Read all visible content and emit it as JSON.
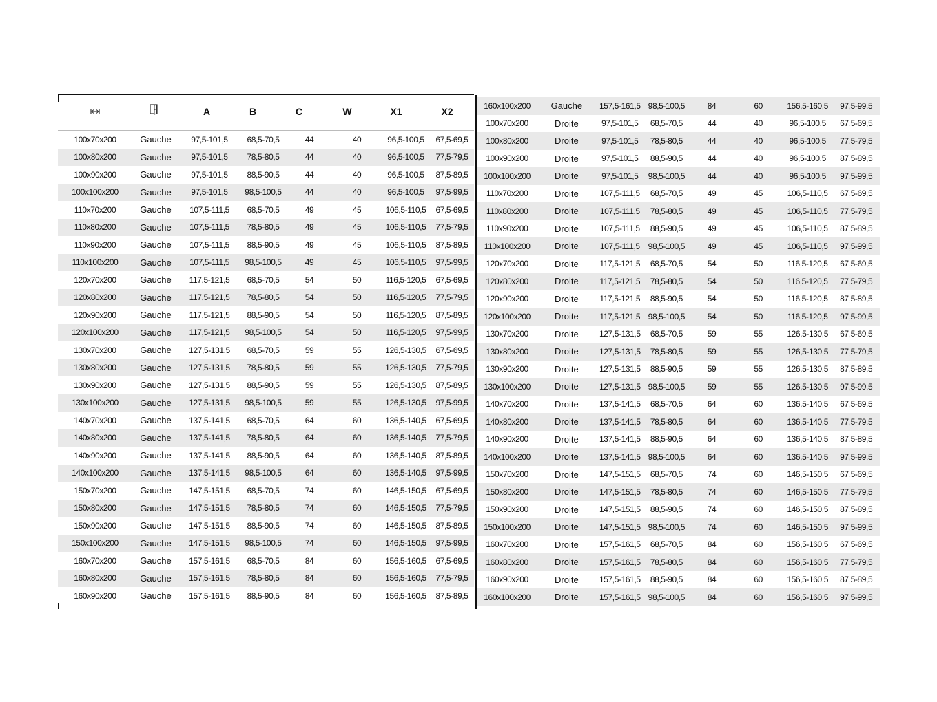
{
  "header": {
    "icons": [
      "width-arrows-icon",
      "door-icon"
    ],
    "labels": [
      "A",
      "B",
      "C",
      "W",
      "X1",
      "X2"
    ]
  },
  "left_rows": [
    [
      "100x70x200",
      "Gauche",
      "97,5-101,5",
      "68,5-70,5",
      "44",
      "40",
      "96,5-100,5",
      "67,5-69,5"
    ],
    [
      "100x80x200",
      "Gauche",
      "97,5-101,5",
      "78,5-80,5",
      "44",
      "40",
      "96,5-100,5",
      "77,5-79,5"
    ],
    [
      "100x90x200",
      "Gauche",
      "97,5-101,5",
      "88,5-90,5",
      "44",
      "40",
      "96,5-100,5",
      "87,5-89,5"
    ],
    [
      "100x100x200",
      "Gauche",
      "97,5-101,5",
      "98,5-100,5",
      "44",
      "40",
      "96,5-100,5",
      "97,5-99,5"
    ],
    [
      "110x70x200",
      "Gauche",
      "107,5-111,5",
      "68,5-70,5",
      "49",
      "45",
      "106,5-110,5",
      "67,5-69,5"
    ],
    [
      "110x80x200",
      "Gauche",
      "107,5-111,5",
      "78,5-80,5",
      "49",
      "45",
      "106,5-110,5",
      "77,5-79,5"
    ],
    [
      "110x90x200",
      "Gauche",
      "107,5-111,5",
      "88,5-90,5",
      "49",
      "45",
      "106,5-110,5",
      "87,5-89,5"
    ],
    [
      "110x100x200",
      "Gauche",
      "107,5-111,5",
      "98,5-100,5",
      "49",
      "45",
      "106,5-110,5",
      "97,5-99,5"
    ],
    [
      "120x70x200",
      "Gauche",
      "117,5-121,5",
      "68,5-70,5",
      "54",
      "50",
      "116,5-120,5",
      "67,5-69,5"
    ],
    [
      "120x80x200",
      "Gauche",
      "117,5-121,5",
      "78,5-80,5",
      "54",
      "50",
      "116,5-120,5",
      "77,5-79,5"
    ],
    [
      "120x90x200",
      "Gauche",
      "117,5-121,5",
      "88,5-90,5",
      "54",
      "50",
      "116,5-120,5",
      "87,5-89,5"
    ],
    [
      "120x100x200",
      "Gauche",
      "117,5-121,5",
      "98,5-100,5",
      "54",
      "50",
      "116,5-120,5",
      "97,5-99,5"
    ],
    [
      "130x70x200",
      "Gauche",
      "127,5-131,5",
      "68,5-70,5",
      "59",
      "55",
      "126,5-130,5",
      "67,5-69,5"
    ],
    [
      "130x80x200",
      "Gauche",
      "127,5-131,5",
      "78,5-80,5",
      "59",
      "55",
      "126,5-130,5",
      "77,5-79,5"
    ],
    [
      "130x90x200",
      "Gauche",
      "127,5-131,5",
      "88,5-90,5",
      "59",
      "55",
      "126,5-130,5",
      "87,5-89,5"
    ],
    [
      "130x100x200",
      "Gauche",
      "127,5-131,5",
      "98,5-100,5",
      "59",
      "55",
      "126,5-130,5",
      "97,5-99,5"
    ],
    [
      "140x70x200",
      "Gauche",
      "137,5-141,5",
      "68,5-70,5",
      "64",
      "60",
      "136,5-140,5",
      "67,5-69,5"
    ],
    [
      "140x80x200",
      "Gauche",
      "137,5-141,5",
      "78,5-80,5",
      "64",
      "60",
      "136,5-140,5",
      "77,5-79,5"
    ],
    [
      "140x90x200",
      "Gauche",
      "137,5-141,5",
      "88,5-90,5",
      "64",
      "60",
      "136,5-140,5",
      "87,5-89,5"
    ],
    [
      "140x100x200",
      "Gauche",
      "137,5-141,5",
      "98,5-100,5",
      "64",
      "60",
      "136,5-140,5",
      "97,5-99,5"
    ],
    [
      "150x70x200",
      "Gauche",
      "147,5-151,5",
      "68,5-70,5",
      "74",
      "60",
      "146,5-150,5",
      "67,5-69,5"
    ],
    [
      "150x80x200",
      "Gauche",
      "147,5-151,5",
      "78,5-80,5",
      "74",
      "60",
      "146,5-150,5",
      "77,5-79,5"
    ],
    [
      "150x90x200",
      "Gauche",
      "147,5-151,5",
      "88,5-90,5",
      "74",
      "60",
      "146,5-150,5",
      "87,5-89,5"
    ],
    [
      "150x100x200",
      "Gauche",
      "147,5-151,5",
      "98,5-100,5",
      "74",
      "60",
      "146,5-150,5",
      "97,5-99,5"
    ],
    [
      "160x70x200",
      "Gauche",
      "157,5-161,5",
      "68,5-70,5",
      "84",
      "60",
      "156,5-160,5",
      "67,5-69,5"
    ],
    [
      "160x80x200",
      "Gauche",
      "157,5-161,5",
      "78,5-80,5",
      "84",
      "60",
      "156,5-160,5",
      "77,5-79,5"
    ],
    [
      "160x90x200",
      "Gauche",
      "157,5-161,5",
      "88,5-90,5",
      "84",
      "60",
      "156,5-160,5",
      "87,5-89,5"
    ]
  ],
  "right_rows": [
    [
      "160x100x200",
      "Gauche",
      "157,5-161,5",
      "98,5-100,5",
      "84",
      "60",
      "156,5-160,5",
      "97,5-99,5"
    ],
    [
      "100x70x200",
      "Droite",
      "97,5-101,5",
      "68,5-70,5",
      "44",
      "40",
      "96,5-100,5",
      "67,5-69,5"
    ],
    [
      "100x80x200",
      "Droite",
      "97,5-101,5",
      "78,5-80,5",
      "44",
      "40",
      "96,5-100,5",
      "77,5-79,5"
    ],
    [
      "100x90x200",
      "Droite",
      "97,5-101,5",
      "88,5-90,5",
      "44",
      "40",
      "96,5-100,5",
      "87,5-89,5"
    ],
    [
      "100x100x200",
      "Droite",
      "97,5-101,5",
      "98,5-100,5",
      "44",
      "40",
      "96,5-100,5",
      "97,5-99,5"
    ],
    [
      "110x70x200",
      "Droite",
      "107,5-111,5",
      "68,5-70,5",
      "49",
      "45",
      "106,5-110,5",
      "67,5-69,5"
    ],
    [
      "110x80x200",
      "Droite",
      "107,5-111,5",
      "78,5-80,5",
      "49",
      "45",
      "106,5-110,5",
      "77,5-79,5"
    ],
    [
      "110x90x200",
      "Droite",
      "107,5-111,5",
      "88,5-90,5",
      "49",
      "45",
      "106,5-110,5",
      "87,5-89,5"
    ],
    [
      "110x100x200",
      "Droite",
      "107,5-111,5",
      "98,5-100,5",
      "49",
      "45",
      "106,5-110,5",
      "97,5-99,5"
    ],
    [
      "120x70x200",
      "Droite",
      "117,5-121,5",
      "68,5-70,5",
      "54",
      "50",
      "116,5-120,5",
      "67,5-69,5"
    ],
    [
      "120x80x200",
      "Droite",
      "117,5-121,5",
      "78,5-80,5",
      "54",
      "50",
      "116,5-120,5",
      "77,5-79,5"
    ],
    [
      "120x90x200",
      "Droite",
      "117,5-121,5",
      "88,5-90,5",
      "54",
      "50",
      "116,5-120,5",
      "87,5-89,5"
    ],
    [
      "120x100x200",
      "Droite",
      "117,5-121,5",
      "98,5-100,5",
      "54",
      "50",
      "116,5-120,5",
      "97,5-99,5"
    ],
    [
      "130x70x200",
      "Droite",
      "127,5-131,5",
      "68,5-70,5",
      "59",
      "55",
      "126,5-130,5",
      "67,5-69,5"
    ],
    [
      "130x80x200",
      "Droite",
      "127,5-131,5",
      "78,5-80,5",
      "59",
      "55",
      "126,5-130,5",
      "77,5-79,5"
    ],
    [
      "130x90x200",
      "Droite",
      "127,5-131,5",
      "88,5-90,5",
      "59",
      "55",
      "126,5-130,5",
      "87,5-89,5"
    ],
    [
      "130x100x200",
      "Droite",
      "127,5-131,5",
      "98,5-100,5",
      "59",
      "55",
      "126,5-130,5",
      "97,5-99,5"
    ],
    [
      "140x70x200",
      "Droite",
      "137,5-141,5",
      "68,5-70,5",
      "64",
      "60",
      "136,5-140,5",
      "67,5-69,5"
    ],
    [
      "140x80x200",
      "Droite",
      "137,5-141,5",
      "78,5-80,5",
      "64",
      "60",
      "136,5-140,5",
      "77,5-79,5"
    ],
    [
      "140x90x200",
      "Droite",
      "137,5-141,5",
      "88,5-90,5",
      "64",
      "60",
      "136,5-140,5",
      "87,5-89,5"
    ],
    [
      "140x100x200",
      "Droite",
      "137,5-141,5",
      "98,5-100,5",
      "64",
      "60",
      "136,5-140,5",
      "97,5-99,5"
    ],
    [
      "150x70x200",
      "Droite",
      "147,5-151,5",
      "68,5-70,5",
      "74",
      "60",
      "146,5-150,5",
      "67,5-69,5"
    ],
    [
      "150x80x200",
      "Droite",
      "147,5-151,5",
      "78,5-80,5",
      "74",
      "60",
      "146,5-150,5",
      "77,5-79,5"
    ],
    [
      "150x90x200",
      "Droite",
      "147,5-151,5",
      "88,5-90,5",
      "74",
      "60",
      "146,5-150,5",
      "87,5-89,5"
    ],
    [
      "150x100x200",
      "Droite",
      "147,5-151,5",
      "98,5-100,5",
      "74",
      "60",
      "146,5-150,5",
      "97,5-99,5"
    ],
    [
      "160x70x200",
      "Droite",
      "157,5-161,5",
      "68,5-70,5",
      "84",
      "60",
      "156,5-160,5",
      "67,5-69,5"
    ],
    [
      "160x80x200",
      "Droite",
      "157,5-161,5",
      "78,5-80,5",
      "84",
      "60",
      "156,5-160,5",
      "77,5-79,5"
    ],
    [
      "160x90x200",
      "Droite",
      "157,5-161,5",
      "88,5-90,5",
      "84",
      "60",
      "156,5-160,5",
      "87,5-89,5"
    ],
    [
      "160x100x200",
      "Droite",
      "157,5-161,5",
      "98,5-100,5",
      "84",
      "60",
      "156,5-160,5",
      "97,5-99,5"
    ]
  ],
  "colors": {
    "row_shade": "#e9e9e9",
    "rule": "#111111"
  }
}
